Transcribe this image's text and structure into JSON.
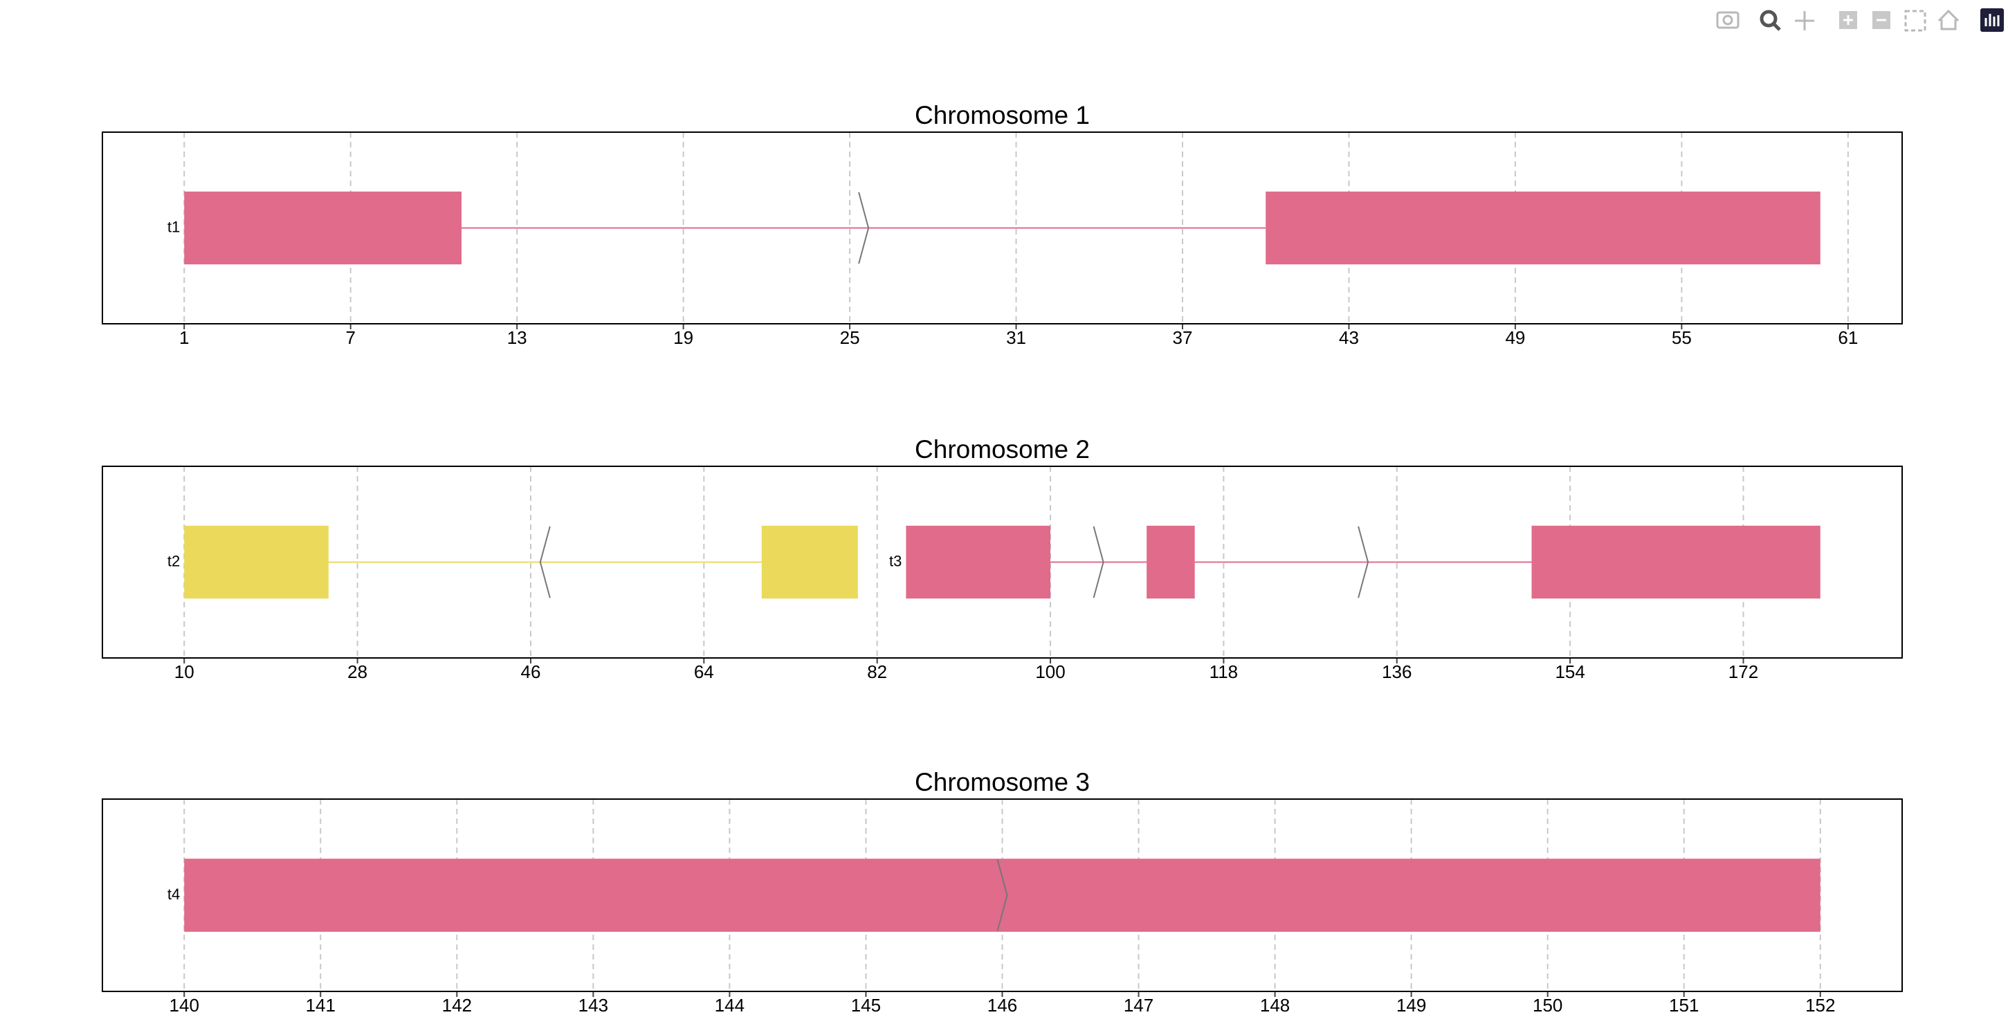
{
  "chart_data": [
    {
      "type": "gene-track",
      "title": "Chromosome 1",
      "xlim": [
        -1.95,
        62.95
      ],
      "xticks": [
        1,
        7,
        13,
        19,
        25,
        31,
        37,
        43,
        49,
        55,
        61
      ],
      "grid": true,
      "transcripts": [
        {
          "name": "t1",
          "color": "#e06b8b",
          "strand": "+",
          "exons": [
            [
              1,
              11
            ],
            [
              40,
              60
            ]
          ]
        }
      ]
    },
    {
      "type": "gene-track",
      "title": "Chromosome 2",
      "xlim": [
        1.5,
        188.5
      ],
      "xticks": [
        10,
        28,
        46,
        64,
        82,
        100,
        118,
        136,
        154,
        172
      ],
      "grid": true,
      "transcripts": [
        {
          "name": "t2",
          "color": "#ebd95b",
          "strand": "-",
          "exons": [
            [
              10,
              25
            ],
            [
              70,
              80
            ]
          ]
        },
        {
          "name": "t3",
          "color": "#e06b8b",
          "strand": "+",
          "exons": [
            [
              85,
              100
            ],
            [
              110,
              115
            ],
            [
              150,
              180
            ]
          ]
        }
      ]
    },
    {
      "type": "gene-track",
      "title": "Chromosome 3",
      "xlim": [
        139.4,
        152.6
      ],
      "xticks": [
        140,
        141,
        142,
        143,
        144,
        145,
        146,
        147,
        148,
        149,
        150,
        151,
        152
      ],
      "grid": true,
      "transcripts": [
        {
          "name": "t4",
          "color": "#e06b8b",
          "strand": "+",
          "exons": [
            [
              140,
              152
            ]
          ]
        }
      ]
    }
  ]
}
